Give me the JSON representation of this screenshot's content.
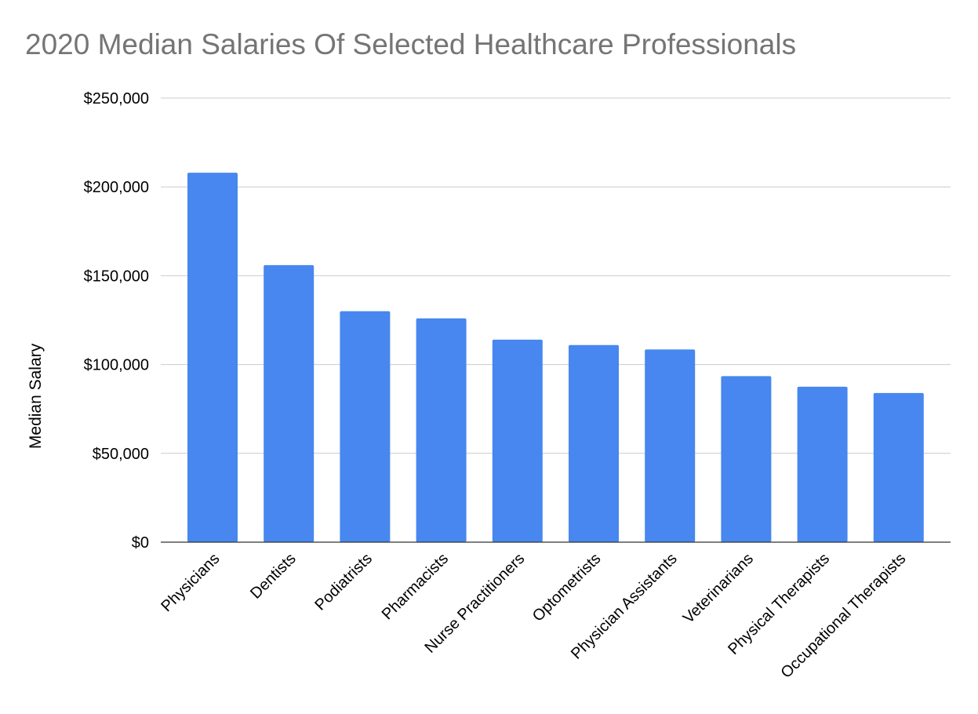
{
  "chart_data": {
    "type": "bar",
    "title": "2020 Median Salaries Of Selected Healthcare Professionals",
    "xlabel": "",
    "ylabel": "Median Salary",
    "ylim": [
      0,
      250000
    ],
    "yticks": [
      0,
      50000,
      100000,
      150000,
      200000,
      250000
    ],
    "ytick_labels": [
      "$0",
      "$50,000",
      "$100,000",
      "$150,000",
      "$200,000",
      "$250,000"
    ],
    "grid": true,
    "legend": "none",
    "bar_color": "#4787ef",
    "categories": [
      "Physicians",
      "Dentists",
      "Podiatrists",
      "Pharmacists",
      "Nurse Practitioners",
      "Optometrists",
      "Physician Assistants",
      "Veterinarians",
      "Physical Therapists",
      "Occupational Therapists"
    ],
    "values": [
      208000,
      156000,
      130000,
      126000,
      114000,
      111000,
      108500,
      93500,
      87500,
      84000
    ]
  }
}
